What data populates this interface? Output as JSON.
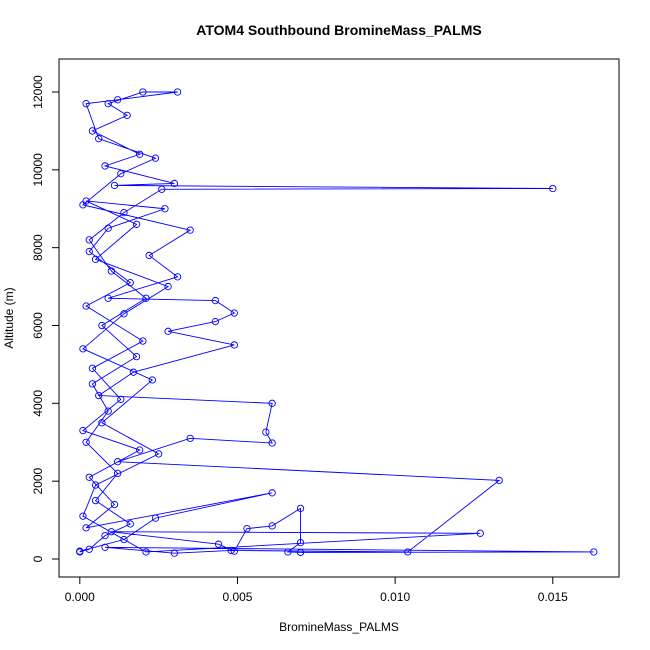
{
  "chart_data": {
    "type": "line",
    "title": "ATOM4 Southbound BromineMass_PALMS",
    "xlabel": "BromineMass_PALMS",
    "ylabel": "Altitude (m)",
    "color": "#0000ff",
    "markers": true,
    "x": [
      0.0,
      0.0003,
      0.0008,
      0.0016,
      0.0005,
      0.0012,
      0.0002,
      0.0009,
      0.0004,
      0.0018,
      0.0007,
      0.0021,
      0.001,
      0.0003,
      0.0014,
      0.0026,
      0.015,
      0.0011,
      0.003,
      0.0008,
      0.0019,
      0.0004,
      0.0015,
      0.0009,
      0.002,
      0.0031,
      0.0012,
      0.0002,
      0.0006,
      0.0024,
      0.0013,
      0.0001,
      0.0035,
      0.0022,
      0.0031,
      0.0009,
      0.0043,
      0.0049,
      0.0043,
      0.0028,
      0.0049,
      0.0017,
      0.0006,
      0.0061,
      0.0059,
      0.0061,
      0.0035,
      0.0012,
      0.0133,
      0.0104,
      0.0048,
      0.003,
      0.0008,
      0.0163,
      0.007,
      0.0066,
      0.007,
      0.007,
      0.0061,
      0.0053,
      0.0049,
      0.0044,
      0.001,
      0.0127,
      0.0021,
      0.0001,
      0.0005,
      0.0025,
      0.0007,
      0.0023,
      0.0001,
      0.0014,
      0.0028,
      0.0005,
      0.0018,
      0.0002,
      0.0027,
      0.0009,
      0.0003,
      0.0016,
      0.0002,
      0.002,
      0.0004,
      0.0013,
      0.0001,
      0.0019,
      0.0003,
      0.0011,
      0.0002,
      0.0061,
      0.0024,
      0.0014,
      0.0
    ],
    "values": [
      180,
      250,
      600,
      900,
      1500,
      2200,
      3000,
      3800,
      4500,
      5200,
      6000,
      6700,
      7400,
      8200,
      8900,
      9500,
      9520,
      9600,
      9650,
      10100,
      10400,
      11000,
      11400,
      11700,
      12000,
      12000,
      11800,
      11700,
      10800,
      10300,
      9900,
      9100,
      8450,
      7800,
      7250,
      6700,
      6640,
      6320,
      6100,
      5850,
      5500,
      4800,
      4200,
      4000,
      3260,
      2980,
      3100,
      2500,
      2020,
      180,
      220,
      150,
      300,
      180,
      170,
      180,
      420,
      1300,
      850,
      780,
      200,
      380,
      700,
      660,
      180,
      1100,
      1900,
      2700,
      3500,
      4600,
      5400,
      6300,
      7000,
      7700,
      8600,
      9200,
      9000,
      8500,
      7900,
      7100,
      6500,
      5600,
      4900,
      4100,
      3300,
      2800,
      2100,
      1400,
      800,
      1700,
      1050,
      500,
      200
    ],
    "xlim": [
      -0.00066,
      0.0171
    ],
    "ylim": [
      -463,
      12848
    ],
    "xticks": [
      {
        "value": 0,
        "label": "0.000"
      },
      {
        "value": 0.005,
        "label": "0.005"
      },
      {
        "value": 0.01,
        "label": "0.010"
      },
      {
        "value": 0.015,
        "label": "0.015"
      }
    ],
    "yticks": [
      0,
      2000,
      4000,
      6000,
      8000,
      10000,
      12000
    ]
  }
}
